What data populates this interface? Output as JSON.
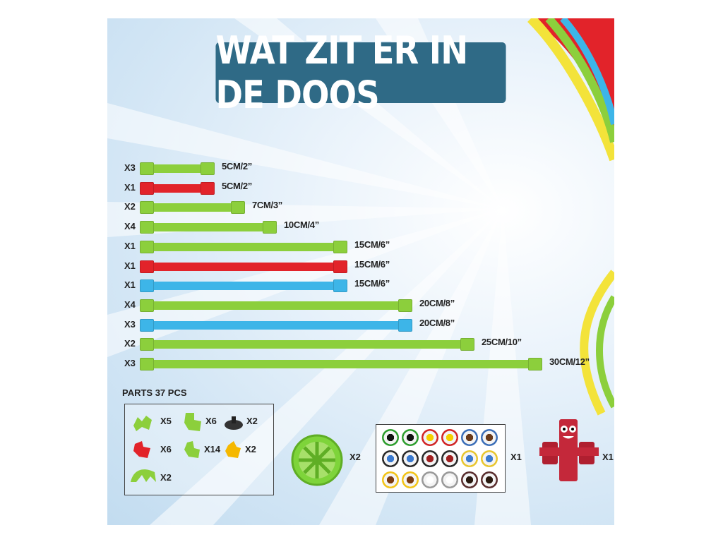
{
  "title": "WAT ZIT ER IN DE DOOS",
  "colors": {
    "green": "#8ccf3c",
    "red": "#e2232a",
    "blue": "#3db5e8",
    "title_bg": "#2f6a86",
    "figure": "#c4283a"
  },
  "rods": [
    {
      "qty": "X3",
      "color": "green",
      "size": "5CM/2”"
    },
    {
      "qty": "X1",
      "color": "red",
      "size": "5CM/2”"
    },
    {
      "qty": "X2",
      "color": "green",
      "size": "7CM/3”"
    },
    {
      "qty": "X4",
      "color": "green",
      "size": "10CM/4”"
    },
    {
      "qty": "X1",
      "color": "green",
      "size": "15CM/6”"
    },
    {
      "qty": "X1",
      "color": "red",
      "size": "15CM/6”"
    },
    {
      "qty": "X1",
      "color": "blue",
      "size": "15CM/6”"
    },
    {
      "qty": "X4",
      "color": "green",
      "size": "20CM/8”"
    },
    {
      "qty": "X3",
      "color": "blue",
      "size": "20CM/8”"
    },
    {
      "qty": "X2",
      "color": "green",
      "size": "25CM/10”"
    },
    {
      "qty": "X3",
      "color": "green",
      "size": "30CM/12”"
    }
  ],
  "parts_title": "PARTS  37 PCS",
  "parts": [
    {
      "icon": "green-connector-icon",
      "count": "X5"
    },
    {
      "icon": "green-corner-connector-icon",
      "count": "X6"
    },
    {
      "icon": "black-base-icon",
      "count": "X2"
    },
    {
      "icon": "red-connector-icon",
      "count": "X6"
    },
    {
      "icon": "green-small-connector-icon",
      "count": "X14"
    },
    {
      "icon": "yellow-connector-icon",
      "count": "X2"
    },
    {
      "icon": "green-claw-icon",
      "count": "X2"
    }
  ],
  "wheel_count": "X2",
  "eyes_count": "X1",
  "figure_count": "X1"
}
